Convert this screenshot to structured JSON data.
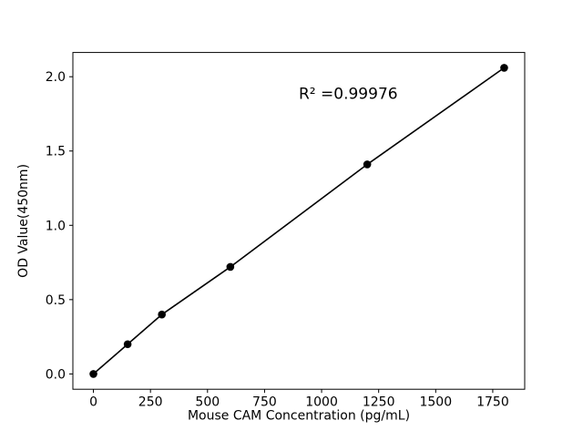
{
  "figure": {
    "background": "#ffffff"
  },
  "chart_data": {
    "type": "line",
    "title": "",
    "xlabel": "Mouse CAM Concentration (pg/mL)",
    "ylabel": "OD Value(450nm)",
    "x": [
      0,
      150,
      300,
      600,
      1200,
      1800
    ],
    "y": [
      0.0,
      0.2,
      0.4,
      0.72,
      1.41,
      2.06
    ],
    "xlim": [
      -90,
      1890
    ],
    "ylim": [
      -0.103,
      2.163
    ],
    "xticks": [
      0,
      250,
      500,
      750,
      1000,
      1250,
      1500,
      1750
    ],
    "xtick_labels": [
      "0",
      "250",
      "500",
      "750",
      "1000",
      "1250",
      "1500",
      "1750"
    ],
    "yticks": [
      0.0,
      0.5,
      1.0,
      1.5,
      2.0
    ],
    "ytick_labels": [
      "0.0",
      "0.5",
      "1.0",
      "1.5",
      "2.0"
    ],
    "annotation": {
      "text": "R² =0.99976",
      "x": 900,
      "y": 1.85
    },
    "marker": "circle",
    "line_color": "#000000",
    "marker_color": "#000000",
    "axis_color": "#000000",
    "grid": false,
    "legend": null
  }
}
